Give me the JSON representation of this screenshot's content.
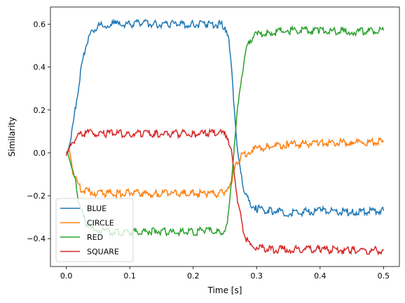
{
  "chart_data": {
    "type": "line",
    "xlabel": "Time [s]",
    "ylabel": "Similarity",
    "xlim": [
      -0.025,
      0.525
    ],
    "ylim": [
      -0.53,
      0.68
    ],
    "xticks": [
      0.0,
      0.1,
      0.2,
      0.3,
      0.4,
      0.5
    ],
    "xtick_labels": [
      "0.0",
      "0.1",
      "0.2",
      "0.3",
      "0.4",
      "0.5"
    ],
    "yticks": [
      -0.4,
      -0.2,
      0.0,
      0.2,
      0.4,
      0.6
    ],
    "ytick_labels": [
      "−0.4",
      "−0.2",
      "0.0",
      "0.2",
      "0.4",
      "0.6"
    ],
    "grid": false,
    "legend_position": "lower-left",
    "series": [
      {
        "name": "BLUE",
        "color": "#1f77b4",
        "x": [
          0.0,
          0.005,
          0.01,
          0.015,
          0.02,
          0.025,
          0.03,
          0.035,
          0.04,
          0.045,
          0.05,
          0.06,
          0.07,
          0.08,
          0.1,
          0.12,
          0.14,
          0.16,
          0.18,
          0.2,
          0.22,
          0.24,
          0.25,
          0.255,
          0.26,
          0.265,
          0.27,
          0.275,
          0.28,
          0.285,
          0.29,
          0.3,
          0.32,
          0.35,
          0.4,
          0.45,
          0.5
        ],
        "y": [
          0.0,
          0.04,
          0.12,
          0.22,
          0.32,
          0.42,
          0.49,
          0.53,
          0.56,
          0.58,
          0.59,
          0.595,
          0.6,
          0.6,
          0.6,
          0.605,
          0.6,
          0.6,
          0.6,
          0.6,
          0.6,
          0.6,
          0.59,
          0.55,
          0.4,
          0.2,
          0.0,
          -0.1,
          -0.17,
          -0.21,
          -0.24,
          -0.26,
          -0.27,
          -0.28,
          -0.27,
          -0.275,
          -0.27
        ]
      },
      {
        "name": "CIRCLE",
        "color": "#ff7f0e",
        "x": [
          0.0,
          0.005,
          0.01,
          0.015,
          0.02,
          0.025,
          0.03,
          0.04,
          0.06,
          0.08,
          0.1,
          0.12,
          0.14,
          0.16,
          0.18,
          0.2,
          0.22,
          0.24,
          0.25,
          0.26,
          0.265,
          0.27,
          0.275,
          0.28,
          0.29,
          0.3,
          0.32,
          0.35,
          0.4,
          0.45,
          0.5
        ],
        "y": [
          0.02,
          0.0,
          -0.08,
          -0.12,
          -0.16,
          -0.17,
          -0.18,
          -0.185,
          -0.19,
          -0.19,
          -0.185,
          -0.19,
          -0.19,
          -0.19,
          -0.19,
          -0.19,
          -0.19,
          -0.19,
          -0.18,
          -0.14,
          -0.08,
          -0.04,
          -0.02,
          -0.01,
          0.01,
          0.02,
          0.03,
          0.04,
          0.045,
          0.05,
          0.05
        ]
      },
      {
        "name": "RED",
        "color": "#2ca02c",
        "x": [
          0.0,
          0.005,
          0.01,
          0.015,
          0.02,
          0.025,
          0.03,
          0.035,
          0.04,
          0.05,
          0.06,
          0.08,
          0.1,
          0.12,
          0.14,
          0.16,
          0.18,
          0.2,
          0.22,
          0.24,
          0.25,
          0.255,
          0.26,
          0.265,
          0.27,
          0.275,
          0.28,
          0.285,
          0.29,
          0.3,
          0.32,
          0.35,
          0.4,
          0.45,
          0.5
        ],
        "y": [
          0.0,
          -0.02,
          -0.08,
          -0.15,
          -0.22,
          -0.28,
          -0.32,
          -0.34,
          -0.35,
          -0.36,
          -0.365,
          -0.37,
          -0.37,
          -0.37,
          -0.36,
          -0.37,
          -0.37,
          -0.37,
          -0.36,
          -0.37,
          -0.36,
          -0.3,
          -0.15,
          0.05,
          0.2,
          0.33,
          0.43,
          0.49,
          0.53,
          0.55,
          0.56,
          0.57,
          0.57,
          0.565,
          0.57
        ]
      },
      {
        "name": "SQUARE",
        "color": "#d62728",
        "x": [
          0.0,
          0.005,
          0.01,
          0.015,
          0.02,
          0.025,
          0.03,
          0.04,
          0.06,
          0.08,
          0.1,
          0.12,
          0.14,
          0.16,
          0.18,
          0.2,
          0.22,
          0.24,
          0.25,
          0.255,
          0.26,
          0.265,
          0.27,
          0.275,
          0.28,
          0.285,
          0.29,
          0.3,
          0.32,
          0.35,
          0.4,
          0.45,
          0.5
        ],
        "y": [
          0.0,
          0.02,
          0.05,
          0.07,
          0.08,
          0.085,
          0.09,
          0.095,
          0.09,
          0.09,
          0.09,
          0.09,
          0.09,
          0.09,
          0.09,
          0.09,
          0.09,
          0.09,
          0.09,
          0.07,
          0.0,
          -0.1,
          -0.22,
          -0.3,
          -0.37,
          -0.41,
          -0.43,
          -0.44,
          -0.45,
          -0.45,
          -0.45,
          -0.455,
          -0.455
        ]
      }
    ]
  }
}
